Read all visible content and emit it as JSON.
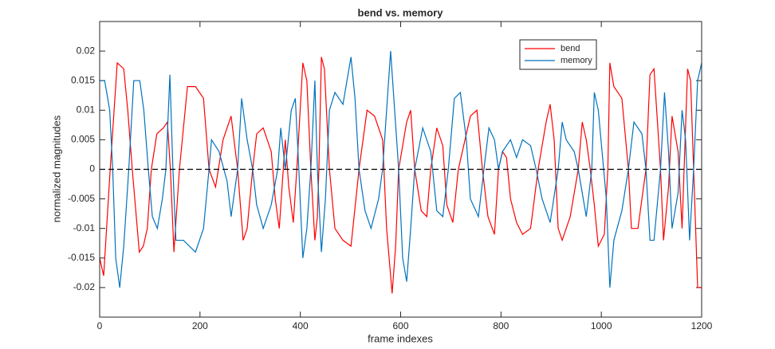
{
  "chart_data": {
    "type": "line",
    "title": "bend vs. memory",
    "xlabel": "frame indexes",
    "ylabel": "normalized magnitudes",
    "xlim": [
      0,
      1200
    ],
    "xticks": [
      0,
      200,
      400,
      600,
      800,
      1000,
      1200
    ],
    "ylim": [
      -0.025,
      0.025
    ],
    "yticks": [
      -0.02,
      -0.015,
      -0.01,
      -0.005,
      0,
      0.005,
      0.01,
      0.015,
      0.02
    ],
    "hline": 0,
    "legend": "northeast",
    "series": [
      {
        "name": "bend",
        "color": "#ff0000",
        "x": [
          0,
          8,
          21,
          35,
          48,
          56,
          65,
          79,
          87,
          95,
          103,
          114,
          127,
          135,
          141,
          148,
          159,
          175,
          191,
          207,
          218,
          231,
          246,
          262,
          275,
          286,
          294,
          305,
          313,
          326,
          342,
          350,
          358,
          366,
          370,
          377,
          386,
          393,
          405,
          413,
          421,
          429,
          434,
          437,
          442,
          448,
          458,
          469,
          485,
          501,
          517,
          533,
          548,
          564,
          572,
          580,
          583,
          590,
          596,
          612,
          620,
          628,
          641,
          652,
          660,
          672,
          684,
          692,
          704,
          715,
          739,
          752,
          763,
          774,
          787,
          795,
          803,
          811,
          819,
          831,
          843,
          859,
          874,
          890,
          898,
          906,
          914,
          922,
          938,
          954,
          962,
          970,
          978,
          986,
          994,
          1006,
          1013,
          1017,
          1025,
          1041,
          1054,
          1060,
          1073,
          1089,
          1097,
          1105,
          1118,
          1124,
          1134,
          1141,
          1153,
          1161,
          1165,
          1172,
          1178,
          1184,
          1192,
          1200
        ],
        "values": [
          -0.015,
          -0.018,
          0,
          0.018,
          0.017,
          0.01,
          0,
          -0.014,
          -0.013,
          -0.01,
          0,
          0.006,
          0.007,
          0.008,
          0,
          -0.014,
          0,
          0.014,
          0.014,
          0.012,
          0,
          -0.003,
          0.005,
          0.009,
          0,
          -0.012,
          -0.01,
          0,
          0.006,
          0.007,
          0.003,
          -0.005,
          -0.01,
          0,
          0.005,
          -0.003,
          -0.009,
          0,
          0.018,
          0.015,
          0,
          -0.012,
          -0.008,
          0,
          0.019,
          0.017,
          0,
          -0.01,
          -0.012,
          -0.013,
          0,
          0.01,
          0.009,
          0.005,
          -0.01,
          -0.018,
          -0.021,
          -0.013,
          0,
          0.008,
          0.01,
          0,
          -0.007,
          -0.008,
          0,
          0.007,
          0.004,
          -0.006,
          -0.009,
          0,
          0.009,
          0.01,
          0,
          -0.008,
          -0.011,
          0,
          0.003,
          0.002,
          -0.005,
          -0.009,
          -0.011,
          -0.01,
          0,
          0.008,
          0.011,
          0.005,
          -0.01,
          -0.012,
          -0.008,
          0,
          0.008,
          0.005,
          0,
          -0.006,
          -0.013,
          -0.011,
          0,
          0.018,
          0.014,
          0.012,
          0,
          -0.01,
          -0.01,
          0,
          0.016,
          0.017,
          0,
          -0.012,
          -0.003,
          0.009,
          0.003,
          -0.01,
          0,
          0.017,
          0.015,
          0,
          -0.02,
          -0.02
        ]
      },
      {
        "name": "memory",
        "color": "#0072bd",
        "x": [
          0,
          10,
          20,
          26,
          32,
          40,
          48,
          58,
          68,
          80,
          88,
          97,
          105,
          115,
          125,
          132,
          140,
          146,
          152,
          167,
          191,
          207,
          218,
          223,
          238,
          254,
          262,
          275,
          283,
          294,
          305,
          313,
          326,
          342,
          355,
          361,
          370,
          382,
          390,
          397,
          405,
          413,
          421,
          429,
          434,
          442,
          450,
          458,
          469,
          485,
          501,
          509,
          517,
          529,
          541,
          556,
          564,
          572,
          580,
          588,
          596,
          604,
          612,
          620,
          628,
          644,
          660,
          672,
          684,
          695,
          707,
          719,
          731,
          739,
          755,
          766,
          776,
          787,
          795,
          803,
          819,
          831,
          843,
          859,
          870,
          882,
          898,
          914,
          922,
          930,
          946,
          954,
          970,
          981,
          986,
          994,
          1010,
          1017,
          1025,
          1041,
          1054,
          1065,
          1081,
          1089,
          1097,
          1105,
          1118,
          1126,
          1134,
          1141,
          1153,
          1161,
          1168,
          1176,
          1184,
          1192,
          1200
        ],
        "values": [
          0.015,
          0.015,
          0.01,
          0,
          -0.015,
          -0.02,
          -0.013,
          0,
          0.015,
          0.015,
          0.01,
          0,
          -0.008,
          -0.01,
          -0.005,
          0,
          0.016,
          0,
          -0.012,
          -0.012,
          -0.014,
          -0.01,
          0,
          0.005,
          0.003,
          -0.002,
          -0.008,
          0,
          0.012,
          0.005,
          0,
          -0.006,
          -0.01,
          -0.006,
          0,
          0.007,
          0,
          0.01,
          0.012,
          0,
          -0.015,
          -0.01,
          0,
          0.015,
          0,
          -0.014,
          -0.005,
          0.01,
          0.013,
          0.011,
          0.019,
          0.012,
          0,
          -0.007,
          -0.01,
          -0.005,
          0,
          0.01,
          0.02,
          0.01,
          0,
          -0.015,
          -0.019,
          -0.01,
          0,
          0.007,
          0.003,
          -0.007,
          -0.008,
          0,
          0.012,
          0.013,
          0.005,
          -0.005,
          -0.008,
          0,
          0.007,
          0.005,
          0,
          0.003,
          0.005,
          0.002,
          0.005,
          0.004,
          0,
          -0.005,
          -0.009,
          0,
          0.008,
          0.005,
          0.003,
          0,
          -0.008,
          0,
          0.013,
          0.01,
          -0.005,
          -0.02,
          -0.012,
          -0.007,
          0,
          0.008,
          0.006,
          0,
          -0.012,
          -0.012,
          0,
          0.013,
          0.003,
          -0.01,
          -0.004,
          0.01,
          0.005,
          -0.012,
          0,
          0.015,
          0.018
        ]
      }
    ]
  }
}
